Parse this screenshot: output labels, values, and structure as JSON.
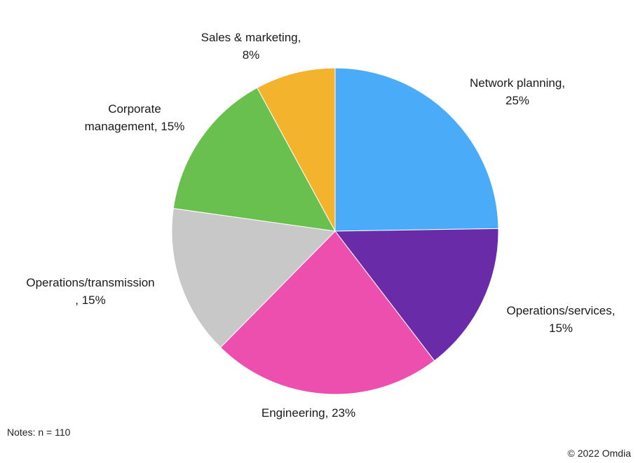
{
  "chart_data": {
    "type": "pie",
    "slices": [
      {
        "label": "Network planning",
        "value": 25,
        "color": "#4AABF8",
        "text_lines": [
          "Network planning,",
          "25%"
        ]
      },
      {
        "label": "Operations/services",
        "value": 15,
        "color": "#6A2BA8",
        "text_lines": [
          "Operations/services,",
          "15%"
        ]
      },
      {
        "label": "Engineering",
        "value": 23,
        "color": "#EC4FAE",
        "text_lines": [
          "Engineering, 23%"
        ]
      },
      {
        "label": "Operations/transmission",
        "value": 15,
        "color": "#C8C8C8",
        "text_lines": [
          "Operations/transmission",
          ", 15%"
        ]
      },
      {
        "label": "Corporate management",
        "value": 15,
        "color": "#6AC04E",
        "text_lines": [
          "Corporate",
          "management, 15%"
        ]
      },
      {
        "label": "Sales & marketing",
        "value": 8,
        "color": "#F3B32C",
        "text_lines": [
          "Sales & marketing,",
          "8%"
        ]
      }
    ],
    "start": "12 o'clock",
    "direction": "clockwise"
  },
  "notes": "Notes: n = 110",
  "copyright": "© 2022 Omdia"
}
